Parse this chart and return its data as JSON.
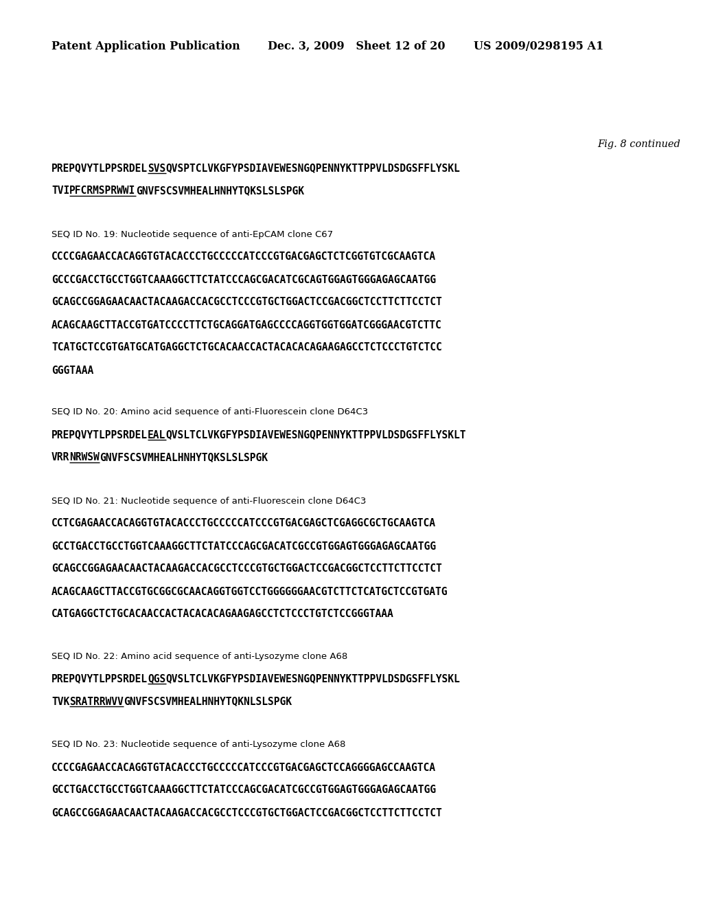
{
  "background_color": "#ffffff",
  "header_left": "Patent Application Publication",
  "header_center": "Dec. 3, 2009   Sheet 12 of 20",
  "header_right": "US 2009/0298195 A1",
  "fig_label": "Fig. 8 continued",
  "seq_lines_0": [
    {
      "prefix": "PREPQVYTLPPSRDEL",
      "under": "SVS",
      "rest": "QVSPTCLVKGFYPSDIAVEWESNGQPENNYKTTPPVLDSDGSFFLYSKL"
    },
    {
      "prefix": "TVI",
      "under": "PFCRMSPRWWI",
      "rest": "GNVFSCSVMHEALHNHYTQKSLSLSPGK"
    }
  ],
  "label_19": "SEQ ID No. 19: Nucleotide sequence of anti-EpCAM clone C67",
  "seq_19": [
    "CCCCGAGAACCACAGGTGTACACCCTGCCCCCATCCCGTGACGAGCTCTCGGTGTCGCAAGTCA",
    "GCCCGACCTGCCTGGTCAAAGGCTTCTATCCCAGCGACATCGCAGTGGAGTGGGAGAGCAATGG",
    "GCAGCCGGAGAACAACTACAAGACCACGCCTCCCGTGCTGGACTCCGACGGCTCCTTCTTCCTCT",
    "ACAGCAAGCTTACCGTGATCCCCTTCTGCAGGATGAGCCCCAGGTGGTGGATCGGGAACGTCTTC",
    "TCATGCTCCGTGATGCATGAGGCTCTGCACAACCACTACACACAGAAGAGCCTCTCCCTGTCTCC",
    "GGGTAAA"
  ],
  "label_20": "SEQ ID No. 20: Amino acid sequence of anti-Fluorescein clone D64C3",
  "seq_lines_20": [
    {
      "prefix": "PREPQVYTLPPSRDEL",
      "under": "EAL",
      "rest": "QVSLTCLVKGFYPSDIAVEWESNGQPENNYKTTPPVLDSDGSFFLYSKLТ"
    },
    {
      "prefix": "VRR",
      "under": "NRWSW",
      "rest": "GNVFSCSVMHEALHNHYTQKSLSLSPGK"
    }
  ],
  "label_21": "SEQ ID No. 21: Nucleotide sequence of anti-Fluorescein clone D64C3",
  "seq_21": [
    "CCTCGAGAACCACAGGTGTACACCCTGCCCCCATCCCGTGACGAGCTCGAGGCGCTGCAAGTCA",
    "GCCTGACCTGCCTGGTCAAAGGCTTCTATCCCAGCGACATCGCCGTGGAGTGGGAGAGCAATGG",
    "GCAGCCGGAGAACAACTACAAGACCACGCCTCCCGTGCTGGACTCCGACGGCTCCTTCTTCCTCT",
    "ACAGCAAGCTTACCGTGCGGCGCAACAGGTGGTCCTGGGGGGAACGTCTTCTCATGCTCCGTGATG",
    "CATGAGGCTCTGCACAACCACTACACACAGAAGAGCCTCTCCCTGTCTCCGGGTAAA"
  ],
  "label_22": "SEQ ID No. 22: Amino acid sequence of anti-Lysozyme clone A68",
  "seq_lines_22": [
    {
      "prefix": "PREPQVYTLPPSRDEL",
      "under": "QGS",
      "rest": "QVSLTCLVKGFYPSDIAVEWESNGQPENNYKTTPPVLDSDGSFFLYSKL"
    },
    {
      "prefix": "TVK",
      "under": "SRATRRWVV",
      "rest": "GNVFSCSVMHEALHNHYTQKNLSLSPGK"
    }
  ],
  "label_23": "SEQ ID No. 23: Nucleotide sequence of anti-Lysozyme clone A68",
  "seq_23": [
    "CCCCGAGAACCACAGGTGTACACCCTGCCCCCATCCCGTGACGAGCTCCAGGGGAGCCAAGTCA",
    "GCCTGACCTGCCTGGTCAAAGGCTTCTATCCCAGCGACATCGCCGTGGAGTGGGAGAGCAATGG",
    "GCAGCCGGAGAACAACTACAAGACCACGCCTCCCGTGCTGGACTCCGACGGCTCCTTCTTCCTCT"
  ]
}
